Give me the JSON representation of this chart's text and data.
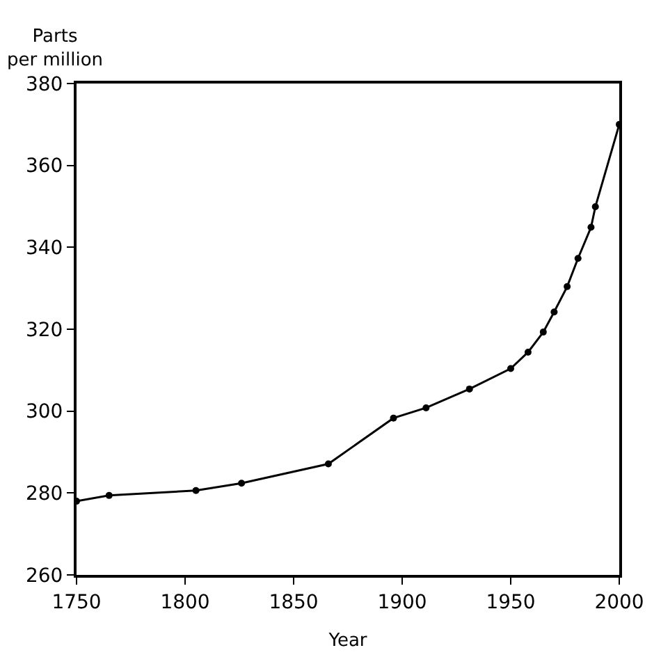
{
  "chart_data": {
    "type": "line",
    "ylabel": "Parts\nper million",
    "xlabel": "Year",
    "x": [
      1750,
      1765,
      1805,
      1826,
      1866,
      1896,
      1911,
      1931,
      1950,
      1958,
      1965,
      1970,
      1976,
      1981,
      1987,
      1989,
      2000
    ],
    "series": [
      {
        "color": "#000000",
        "values": [
          278,
          279.4,
          280.6,
          282.4,
          287.1,
          298.3,
          300.8,
          305.4,
          310.4,
          314.4,
          319.3,
          324.2,
          330.4,
          337.3,
          344.9,
          349.9,
          370
        ]
      }
    ],
    "xlim": [
      1750,
      2000
    ],
    "xticks": [
      1750,
      1800,
      1850,
      1900,
      1950,
      2000
    ],
    "ylim": [
      260,
      380
    ],
    "yticks": [
      260,
      280,
      300,
      320,
      340,
      360,
      380
    ],
    "marker": "circle",
    "line_style": "solid",
    "legend": false
  }
}
